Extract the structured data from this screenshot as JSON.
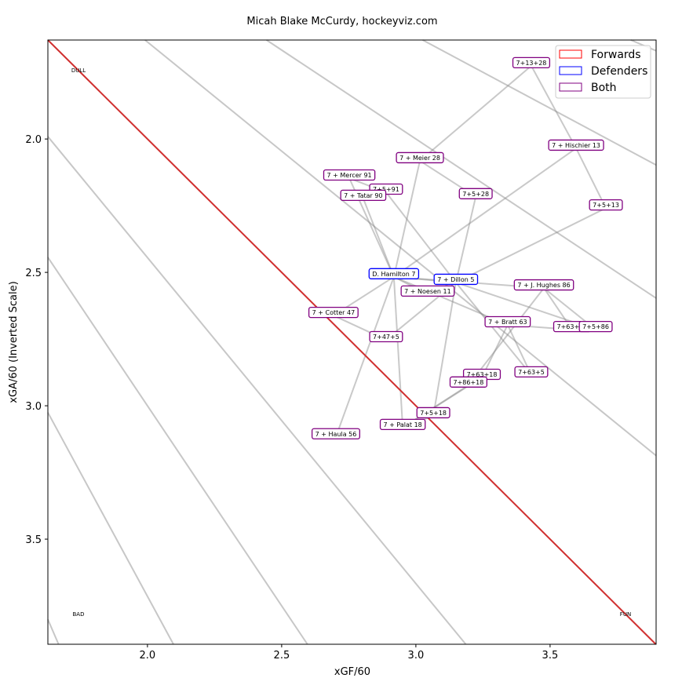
{
  "subtitle": "Micah Blake McCurdy, hockeyviz.com",
  "chart_data": {
    "type": "scatter",
    "xlabel": "xGF/60",
    "ylabel": "xGA/60 (Inverted Scale)",
    "xlim": [
      1.629,
      3.895
    ],
    "ylim": [
      3.894,
      1.629
    ],
    "y_inverted": true,
    "xticks": [
      2.0,
      2.5,
      3.0,
      3.5
    ],
    "yticks": [
      2.0,
      2.5,
      3.0,
      3.5
    ],
    "grid": false,
    "legend": {
      "placement": "top-right",
      "entries": [
        {
          "label": "Forwards",
          "color": "#ff0000"
        },
        {
          "label": "Defenders",
          "color": "#0000ff"
        },
        {
          "label": "Both",
          "color": "#800080"
        }
      ]
    },
    "corner_labels": {
      "top_left": "DULL",
      "bottom_left": "BAD",
      "bottom_right": "FUN"
    },
    "break_even_line_color": "#d03030",
    "share_contours_pct": [
      30,
      35,
      40,
      45,
      55,
      60,
      65,
      70
    ],
    "points": [
      {
        "label": "D. Hamilton 7",
        "x": 2.918,
        "y": 2.505,
        "group": "Defenders"
      },
      {
        "label": "7 + Dillon 5",
        "x": 3.149,
        "y": 2.526,
        "group": "Defenders"
      },
      {
        "label": "7 + Noesen 11",
        "x": 3.044,
        "y": 2.57,
        "group": "Both"
      },
      {
        "label": "7+13+28",
        "x": 3.43,
        "y": 1.714,
        "group": "Both"
      },
      {
        "label": "7 + Hischier 13",
        "x": 3.597,
        "y": 2.023,
        "group": "Both"
      },
      {
        "label": "7 + Meier 28",
        "x": 3.015,
        "y": 2.07,
        "group": "Both"
      },
      {
        "label": "7 + Mercer 91",
        "x": 2.752,
        "y": 2.135,
        "group": "Both"
      },
      {
        "label": "7+5+91",
        "x": 2.889,
        "y": 2.188,
        "group": "Both"
      },
      {
        "label": "7 + Tatar 90",
        "x": 2.804,
        "y": 2.211,
        "group": "Both"
      },
      {
        "label": "7+5+28",
        "x": 3.223,
        "y": 2.205,
        "group": "Both"
      },
      {
        "label": "7+5+13",
        "x": 3.708,
        "y": 2.247,
        "group": "Both"
      },
      {
        "label": "7 + J. Hughes 86",
        "x": 3.477,
        "y": 2.547,
        "group": "Both"
      },
      {
        "label": "7 + Cotter 47",
        "x": 2.693,
        "y": 2.65,
        "group": "Both"
      },
      {
        "label": "7 + Bratt 63",
        "x": 3.342,
        "y": 2.685,
        "group": "Both"
      },
      {
        "label": "7+63+86",
        "x": 3.582,
        "y": 2.703,
        "group": "Both"
      },
      {
        "label": "7+5+86",
        "x": 3.67,
        "y": 2.703,
        "group": "Both"
      },
      {
        "label": "7+47+5",
        "x": 2.889,
        "y": 2.741,
        "group": "Both"
      },
      {
        "label": "7+63+5",
        "x": 3.43,
        "y": 2.873,
        "group": "Both"
      },
      {
        "label": "7+63+18",
        "x": 3.246,
        "y": 2.882,
        "group": "Both"
      },
      {
        "label": "7+86+18",
        "x": 3.196,
        "y": 2.911,
        "group": "Both"
      },
      {
        "label": "7+5+18",
        "x": 3.065,
        "y": 3.026,
        "group": "Both"
      },
      {
        "label": "7 + Palat 18",
        "x": 2.951,
        "y": 3.07,
        "group": "Both"
      },
      {
        "label": "7 + Haula 56",
        "x": 2.702,
        "y": 3.105,
        "group": "Both"
      }
    ],
    "links": [
      [
        "D. Hamilton 7",
        "7 + Dillon 5"
      ],
      [
        "D. Hamilton 7",
        "7 + Noesen 11"
      ],
      [
        "D. Hamilton 7",
        "7 + Hischier 13"
      ],
      [
        "D. Hamilton 7",
        "7 + Meier 28"
      ],
      [
        "D. Hamilton 7",
        "7 + Mercer 91"
      ],
      [
        "D. Hamilton 7",
        "7 + Tatar 90"
      ],
      [
        "D. Hamilton 7",
        "7 + J. Hughes 86"
      ],
      [
        "D. Hamilton 7",
        "7 + Cotter 47"
      ],
      [
        "D. Hamilton 7",
        "7 + Bratt 63"
      ],
      [
        "D. Hamilton 7",
        "7 + Palat 18"
      ],
      [
        "D. Hamilton 7",
        "7 + Haula 56"
      ],
      [
        "7+13+28",
        "7 + Hischier 13"
      ],
      [
        "7+13+28",
        "7 + Meier 28"
      ],
      [
        "7+5+91",
        "7 + Dillon 5"
      ],
      [
        "7+5+91",
        "7 + Mercer 91"
      ],
      [
        "7+5+28",
        "7 + Dillon 5"
      ],
      [
        "7+5+28",
        "7 + Meier 28"
      ],
      [
        "7+5+13",
        "7 + Dillon 5"
      ],
      [
        "7+5+13",
        "7 + Hischier 13"
      ],
      [
        "7+63+86",
        "7 + Bratt 63"
      ],
      [
        "7+63+86",
        "7 + J. Hughes 86"
      ],
      [
        "7+5+86",
        "7 + Dillon 5"
      ],
      [
        "7+5+86",
        "7 + J. Hughes 86"
      ],
      [
        "7+47+5",
        "7 + Cotter 47"
      ],
      [
        "7+47+5",
        "7 + Dillon 5"
      ],
      [
        "7+63+5",
        "7 + Bratt 63"
      ],
      [
        "7+63+5",
        "7 + Dillon 5"
      ],
      [
        "7+63+18",
        "7 + Bratt 63"
      ],
      [
        "7+63+18",
        "7 + Palat 18"
      ],
      [
        "7+86+18",
        "7 + J. Hughes 86"
      ],
      [
        "7+86+18",
        "7 + Palat 18"
      ],
      [
        "7+5+18",
        "7 + Dillon 5"
      ],
      [
        "7+5+18",
        "7 + Palat 18"
      ]
    ]
  }
}
